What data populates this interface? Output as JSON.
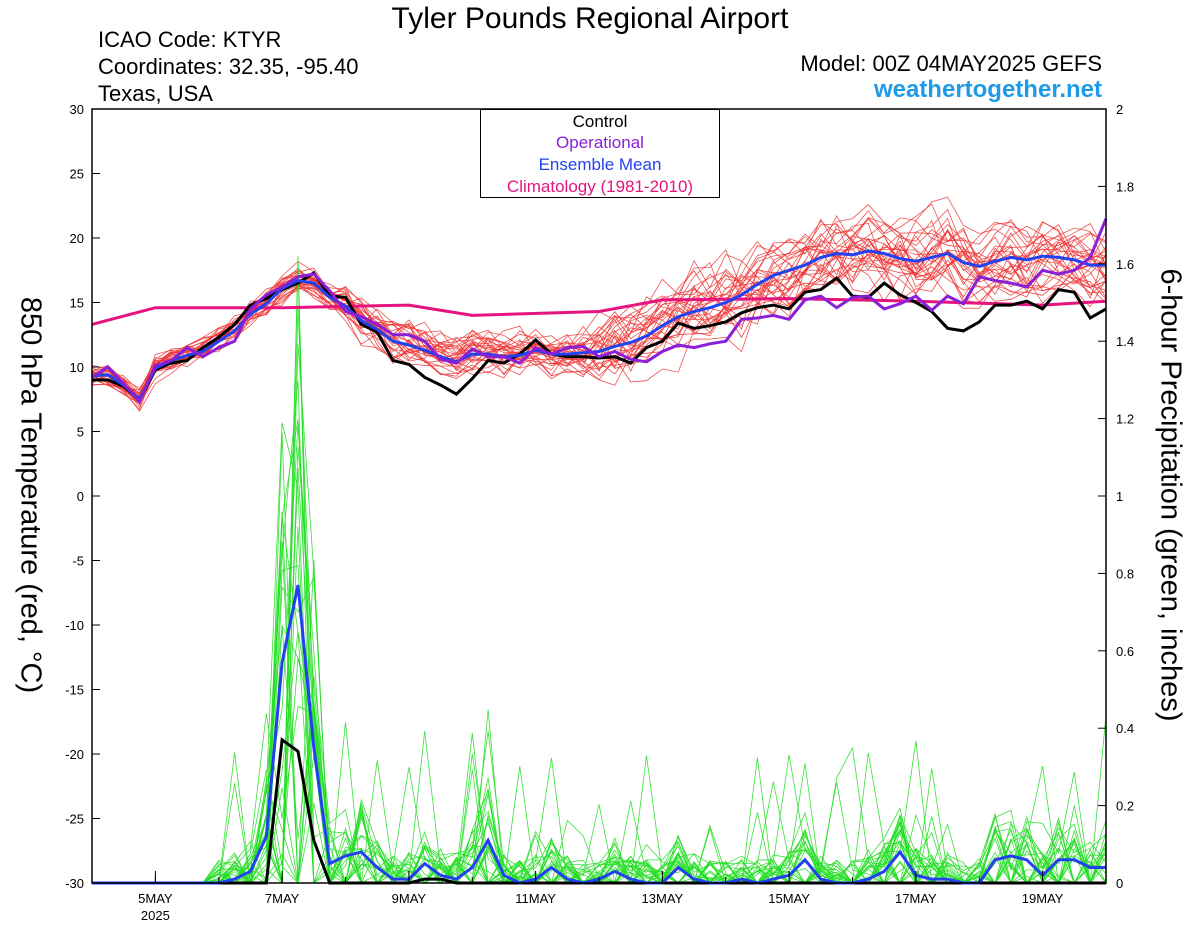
{
  "header": {
    "title": "Tyler Pounds Regional Airport",
    "icao": "ICAO Code: KTYR",
    "coordinates": "Coordinates: 32.35, -95.40",
    "region": "Texas, USA",
    "model": "Model: 00Z 04MAY2025 GEFS",
    "site": "weathertogether.net"
  },
  "chart_data": {
    "type": "line",
    "xlabel": "",
    "ylabel_left": "850 hPa Temperature (red, °C)",
    "ylabel_right": "6-hour Precipitation (green, inches)",
    "x_axis": {
      "range_days": [
        4.0,
        20.0
      ],
      "tick_labels": [
        "5MAY",
        "7MAY",
        "9MAY",
        "11MAY",
        "13MAY",
        "15MAY",
        "17MAY",
        "19MAY"
      ],
      "tick_days": [
        5,
        7,
        9,
        11,
        13,
        15,
        17,
        19
      ],
      "year_label": "2025"
    },
    "y_left": {
      "range": [
        -30,
        30
      ],
      "ticks": [
        -30,
        -25,
        -20,
        -15,
        -10,
        -5,
        0,
        5,
        10,
        15,
        20,
        25,
        30
      ]
    },
    "y_right": {
      "range": [
        0,
        2
      ],
      "ticks": [
        0,
        0.2,
        0.4,
        0.6,
        0.8,
        1,
        1.2,
        1.4,
        1.6,
        1.8,
        2
      ]
    },
    "legend": {
      "placement": "top-center",
      "items": [
        {
          "label": "Control",
          "color": "#000000"
        },
        {
          "label": "Operational",
          "color": "#8a1fd6"
        },
        {
          "label": "Ensemble Mean",
          "color": "#2242f0"
        },
        {
          "label": "Climatology (1981-2010)",
          "color": "#e5147f"
        }
      ]
    },
    "colors": {
      "members_temp": "#ee3333",
      "members_precip": "#22dd22",
      "control": "#000000",
      "operational": "#8a1fd6",
      "mean": "#2242f0",
      "climatology": "#e5147f"
    },
    "series_temperature": {
      "control": [
        [
          4.0,
          9.0
        ],
        [
          4.25,
          9.0
        ],
        [
          4.5,
          8.5
        ],
        [
          4.75,
          7.4
        ],
        [
          5.0,
          9.8
        ],
        [
          5.25,
          10.3
        ],
        [
          5.5,
          10.5
        ],
        [
          5.75,
          11.5
        ],
        [
          6.0,
          12.3
        ],
        [
          6.25,
          13.3
        ],
        [
          6.5,
          14.8
        ],
        [
          6.75,
          15.3
        ],
        [
          7.0,
          16.0
        ],
        [
          7.25,
          16.5
        ],
        [
          7.5,
          17.3
        ],
        [
          7.75,
          15.5
        ],
        [
          8.0,
          15.4
        ],
        [
          8.25,
          13.3
        ],
        [
          8.5,
          12.7
        ],
        [
          8.75,
          10.5
        ],
        [
          9.0,
          10.2
        ],
        [
          9.25,
          9.2
        ],
        [
          9.5,
          8.6
        ],
        [
          9.75,
          7.9
        ],
        [
          10.0,
          9.1
        ],
        [
          10.25,
          10.5
        ],
        [
          10.5,
          10.3
        ],
        [
          10.75,
          11.0
        ],
        [
          11.0,
          12.1
        ],
        [
          11.25,
          11.0
        ],
        [
          11.5,
          10.8
        ],
        [
          11.75,
          10.8
        ],
        [
          12.0,
          10.7
        ],
        [
          12.25,
          10.8
        ],
        [
          12.5,
          10.3
        ],
        [
          12.75,
          11.5
        ],
        [
          13.0,
          12.0
        ],
        [
          13.25,
          13.4
        ],
        [
          13.5,
          13.0
        ],
        [
          13.75,
          13.2
        ],
        [
          14.0,
          13.5
        ],
        [
          14.25,
          14.2
        ],
        [
          14.5,
          14.6
        ],
        [
          14.75,
          14.8
        ],
        [
          15.0,
          14.5
        ],
        [
          15.25,
          15.8
        ],
        [
          15.5,
          16.0
        ],
        [
          15.75,
          16.9
        ],
        [
          16.0,
          15.5
        ],
        [
          16.25,
          15.4
        ],
        [
          16.5,
          16.5
        ],
        [
          16.75,
          15.6
        ],
        [
          17.0,
          15.0
        ],
        [
          17.25,
          14.3
        ],
        [
          17.5,
          13.0
        ],
        [
          17.75,
          12.8
        ],
        [
          18.0,
          13.5
        ],
        [
          18.25,
          14.8
        ],
        [
          18.5,
          14.8
        ],
        [
          18.75,
          15.1
        ],
        [
          19.0,
          14.5
        ],
        [
          19.25,
          16.0
        ],
        [
          19.5,
          15.8
        ],
        [
          19.75,
          13.8
        ],
        [
          20.0,
          14.5
        ]
      ],
      "operational": [
        [
          4.0,
          9.2
        ],
        [
          4.25,
          10.0
        ],
        [
          4.5,
          8.7
        ],
        [
          4.75,
          7.3
        ],
        [
          5.0,
          10.1
        ],
        [
          5.25,
          10.5
        ],
        [
          5.5,
          11.5
        ],
        [
          5.75,
          10.8
        ],
        [
          6.0,
          11.5
        ],
        [
          6.25,
          12.0
        ],
        [
          6.5,
          14.5
        ],
        [
          6.75,
          15.6
        ],
        [
          7.0,
          16.2
        ],
        [
          7.25,
          17.0
        ],
        [
          7.5,
          17.2
        ],
        [
          7.75,
          15.9
        ],
        [
          8.0,
          14.3
        ],
        [
          8.25,
          13.9
        ],
        [
          8.5,
          13.3
        ],
        [
          8.75,
          12.5
        ],
        [
          9.0,
          12.5
        ],
        [
          9.25,
          12.0
        ],
        [
          9.5,
          10.6
        ],
        [
          9.75,
          10.3
        ],
        [
          10.0,
          11.4
        ],
        [
          10.25,
          10.8
        ],
        [
          10.5,
          10.8
        ],
        [
          10.75,
          10.3
        ],
        [
          11.0,
          11.5
        ],
        [
          11.25,
          11.0
        ],
        [
          11.5,
          11.5
        ],
        [
          11.75,
          11.6
        ],
        [
          12.0,
          10.8
        ],
        [
          12.25,
          11.2
        ],
        [
          12.5,
          10.6
        ],
        [
          12.75,
          10.4
        ],
        [
          13.0,
          11.2
        ],
        [
          13.25,
          11.7
        ],
        [
          13.5,
          11.5
        ],
        [
          13.75,
          11.8
        ],
        [
          14.0,
          12.0
        ],
        [
          14.25,
          13.7
        ],
        [
          14.5,
          13.8
        ],
        [
          14.75,
          14.0
        ],
        [
          15.0,
          13.7
        ],
        [
          15.25,
          15.2
        ],
        [
          15.5,
          15.5
        ],
        [
          15.75,
          14.6
        ],
        [
          16.0,
          15.4
        ],
        [
          16.25,
          15.5
        ],
        [
          16.5,
          14.5
        ],
        [
          16.75,
          14.9
        ],
        [
          17.0,
          15.5
        ],
        [
          17.25,
          14.4
        ],
        [
          17.5,
          15.5
        ],
        [
          17.75,
          14.9
        ],
        [
          18.0,
          17.0
        ],
        [
          18.25,
          16.7
        ],
        [
          18.5,
          16.5
        ],
        [
          18.75,
          16.2
        ],
        [
          19.0,
          17.5
        ],
        [
          19.25,
          17.2
        ],
        [
          19.5,
          17.5
        ],
        [
          19.75,
          18.5
        ],
        [
          20.0,
          21.5
        ]
      ],
      "mean": [
        [
          4.0,
          9.3
        ],
        [
          4.25,
          9.4
        ],
        [
          4.5,
          8.6
        ],
        [
          4.75,
          7.5
        ],
        [
          5.0,
          9.9
        ],
        [
          5.25,
          10.5
        ],
        [
          5.5,
          10.9
        ],
        [
          5.75,
          11.2
        ],
        [
          6.0,
          12.0
        ],
        [
          6.25,
          12.8
        ],
        [
          6.5,
          14.1
        ],
        [
          6.75,
          14.9
        ],
        [
          7.0,
          16.1
        ],
        [
          7.25,
          16.7
        ],
        [
          7.5,
          16.5
        ],
        [
          7.75,
          15.4
        ],
        [
          8.0,
          14.7
        ],
        [
          8.25,
          13.6
        ],
        [
          8.5,
          12.9
        ],
        [
          8.75,
          12.0
        ],
        [
          9.0,
          11.7
        ],
        [
          9.25,
          11.3
        ],
        [
          9.5,
          10.8
        ],
        [
          9.75,
          10.4
        ],
        [
          10.0,
          11.0
        ],
        [
          10.25,
          11.0
        ],
        [
          10.5,
          10.8
        ],
        [
          10.75,
          10.9
        ],
        [
          11.0,
          11.3
        ],
        [
          11.25,
          11.0
        ],
        [
          11.5,
          11.0
        ],
        [
          11.75,
          11.1
        ],
        [
          12.0,
          11.2
        ],
        [
          12.25,
          11.6
        ],
        [
          12.5,
          11.9
        ],
        [
          12.75,
          12.4
        ],
        [
          13.0,
          13.2
        ],
        [
          13.25,
          13.9
        ],
        [
          13.5,
          14.3
        ],
        [
          13.75,
          14.6
        ],
        [
          14.0,
          15.0
        ],
        [
          14.25,
          15.6
        ],
        [
          14.5,
          16.4
        ],
        [
          14.75,
          17.1
        ],
        [
          15.0,
          17.5
        ],
        [
          15.25,
          17.9
        ],
        [
          15.5,
          18.5
        ],
        [
          15.75,
          18.8
        ],
        [
          16.0,
          18.7
        ],
        [
          16.25,
          19.0
        ],
        [
          16.5,
          18.8
        ],
        [
          16.75,
          18.4
        ],
        [
          17.0,
          18.2
        ],
        [
          17.25,
          18.5
        ],
        [
          17.5,
          18.8
        ],
        [
          17.75,
          18.1
        ],
        [
          18.0,
          17.8
        ],
        [
          18.25,
          18.2
        ],
        [
          18.5,
          18.5
        ],
        [
          18.75,
          18.3
        ],
        [
          19.0,
          18.6
        ],
        [
          19.25,
          18.5
        ],
        [
          19.5,
          18.3
        ],
        [
          19.75,
          17.9
        ],
        [
          20.0,
          17.9
        ]
      ],
      "climatology": [
        [
          4.0,
          13.3
        ],
        [
          5.0,
          14.6
        ],
        [
          7.0,
          14.6
        ],
        [
          9.0,
          14.8
        ],
        [
          10.0,
          14.0
        ],
        [
          12.0,
          14.3
        ],
        [
          13.0,
          15.2
        ],
        [
          15.0,
          15.3
        ],
        [
          17.0,
          15.1
        ],
        [
          19.0,
          14.8
        ],
        [
          20.0,
          15.1
        ]
      ]
    },
    "series_precip": {
      "control": [
        [
          4.0,
          0.0
        ],
        [
          6.75,
          0.0
        ],
        [
          7.0,
          0.37
        ],
        [
          7.25,
          0.34
        ],
        [
          7.5,
          0.11
        ],
        [
          7.75,
          0.0
        ],
        [
          9.0,
          0.0
        ],
        [
          9.25,
          0.01
        ],
        [
          9.5,
          0.01
        ],
        [
          9.75,
          0.0
        ],
        [
          20.0,
          0.0
        ]
      ],
      "mean": [
        [
          4.0,
          0.0
        ],
        [
          6.0,
          0.0
        ],
        [
          6.25,
          0.01
        ],
        [
          6.5,
          0.03
        ],
        [
          6.75,
          0.12
        ],
        [
          7.0,
          0.57
        ],
        [
          7.25,
          0.77
        ],
        [
          7.5,
          0.35
        ],
        [
          7.75,
          0.05
        ],
        [
          8.0,
          0.07
        ],
        [
          8.25,
          0.08
        ],
        [
          8.5,
          0.04
        ],
        [
          8.75,
          0.01
        ],
        [
          9.0,
          0.01
        ],
        [
          9.25,
          0.05
        ],
        [
          9.5,
          0.02
        ],
        [
          9.75,
          0.01
        ],
        [
          10.0,
          0.04
        ],
        [
          10.25,
          0.11
        ],
        [
          10.5,
          0.02
        ],
        [
          10.75,
          0.0
        ],
        [
          11.0,
          0.01
        ],
        [
          11.25,
          0.04
        ],
        [
          11.5,
          0.01
        ],
        [
          11.75,
          0.0
        ],
        [
          12.0,
          0.01
        ],
        [
          12.25,
          0.03
        ],
        [
          12.5,
          0.01
        ],
        [
          12.75,
          0.0
        ],
        [
          13.0,
          0.0
        ],
        [
          13.25,
          0.04
        ],
        [
          13.5,
          0.01
        ],
        [
          13.75,
          0.0
        ],
        [
          14.0,
          0.0
        ],
        [
          14.25,
          0.01
        ],
        [
          14.5,
          0.0
        ],
        [
          14.75,
          0.01
        ],
        [
          15.0,
          0.02
        ],
        [
          15.25,
          0.06
        ],
        [
          15.5,
          0.01
        ],
        [
          15.75,
          0.0
        ],
        [
          16.0,
          0.0
        ],
        [
          16.25,
          0.01
        ],
        [
          16.5,
          0.03
        ],
        [
          16.75,
          0.08
        ],
        [
          17.0,
          0.02
        ],
        [
          17.25,
          0.01
        ],
        [
          17.5,
          0.01
        ],
        [
          17.75,
          0.0
        ],
        [
          18.0,
          0.0
        ],
        [
          18.25,
          0.06
        ],
        [
          18.5,
          0.07
        ],
        [
          18.75,
          0.06
        ],
        [
          19.0,
          0.02
        ],
        [
          19.25,
          0.06
        ],
        [
          19.5,
          0.06
        ],
        [
          19.75,
          0.04
        ],
        [
          20.0,
          0.04
        ]
      ]
    }
  }
}
